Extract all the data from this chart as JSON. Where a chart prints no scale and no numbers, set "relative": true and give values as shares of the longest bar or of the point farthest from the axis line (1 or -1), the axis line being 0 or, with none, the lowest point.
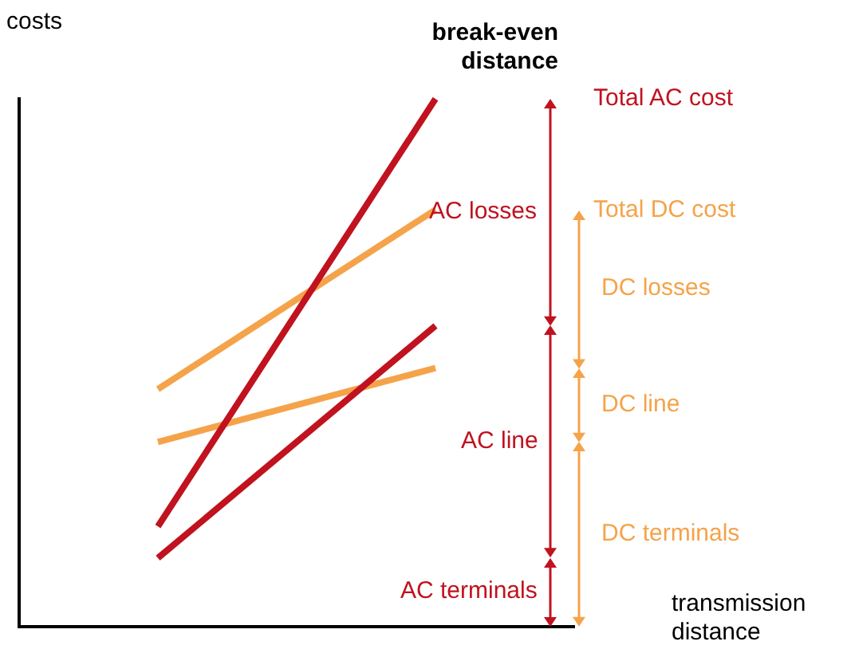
{
  "chart_data": {
    "type": "line",
    "relative": true,
    "ylabel": "costs",
    "xlabel": "transmission distance",
    "categories": [
      null,
      null
    ],
    "series": [
      {
        "name": "Total AC cost",
        "color": "#c0121f",
        "values": [
          0.19,
          1
        ]
      },
      {
        "color": "#c0121f",
        "values": [
          0.13,
          0.57
        ]
      },
      {
        "name": "Total DC cost",
        "color": "#f5a34a",
        "values": [
          0.45,
          0.79
        ]
      },
      {
        "color": "#f5a34a",
        "values": [
          0.35,
          0.49
        ]
      }
    ],
    "annotations": [
      "AC losses",
      "AC line",
      "AC terminals",
      "DC losses",
      "DC line",
      "DC terminals",
      "break-even distance"
    ],
    "marker": "none",
    "grid": false,
    "legend": "right"
  }
}
